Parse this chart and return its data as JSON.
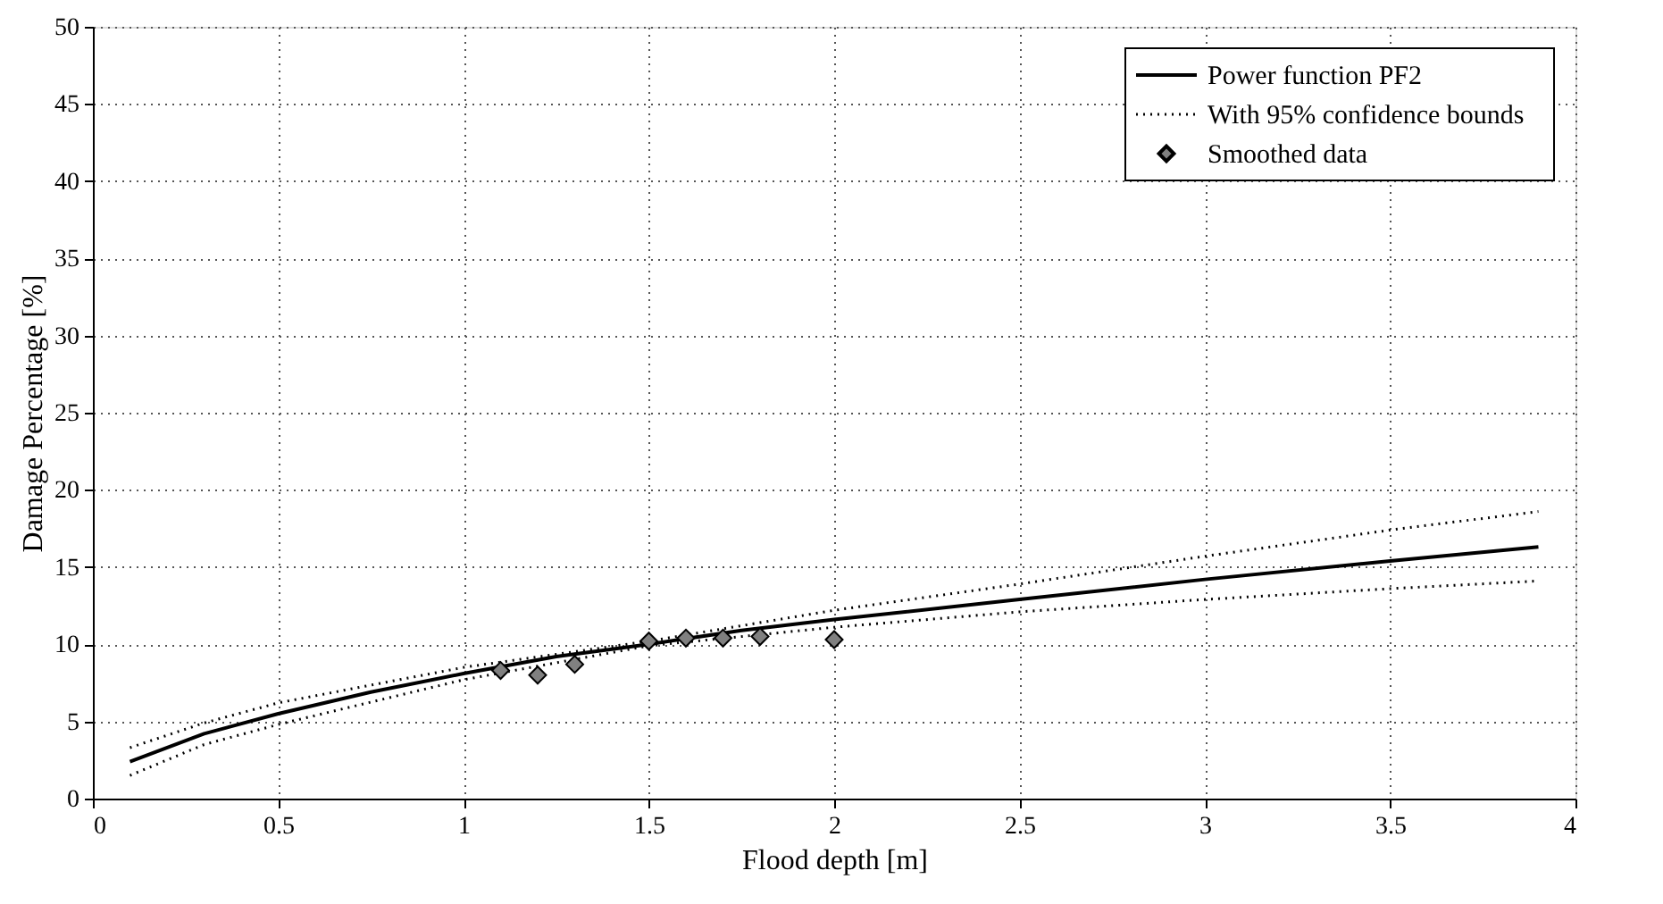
{
  "chart_data": {
    "type": "line",
    "xlabel": "Flood depth [m]",
    "ylabel": "Damage Percentage [%]",
    "xlim": [
      0,
      4
    ],
    "xticks": [
      0,
      0.5,
      1,
      1.5,
      2,
      2.5,
      3,
      3.5,
      4
    ],
    "ylim": [
      0,
      50
    ],
    "yticks": [
      0,
      5,
      10,
      15,
      20,
      25,
      30,
      35,
      40,
      45,
      50
    ],
    "grid": true,
    "legend": "top right",
    "series": [
      {
        "name": "Power function PF2",
        "line_style": "solid",
        "color": "#000000",
        "x": [
          0.1,
          0.3,
          0.5,
          0.75,
          1,
          1.25,
          1.5,
          1.75,
          2,
          2.5,
          3,
          3.5,
          3.9
        ],
        "values": [
          2.4,
          4.2,
          5.5,
          6.9,
          8.1,
          9.2,
          10.0,
          10.9,
          11.6,
          12.9,
          14.2,
          15.4,
          16.3
        ]
      },
      {
        "name": "With 95% confidence bounds",
        "line_style": "dotted",
        "color": "#000000",
        "x": [
          0.1,
          0.3,
          0.5,
          1,
          1.5,
          2,
          2.5,
          3,
          3.5,
          3.9
        ],
        "values": [
          3.3,
          4.9,
          6.2,
          8.5,
          10.2,
          12.2,
          13.9,
          15.7,
          17.4,
          18.6
        ]
      },
      {
        "line_style": "dotted",
        "color": "#000000",
        "x": [
          0.1,
          0.3,
          0.5,
          1,
          1.5,
          2,
          2.5,
          3,
          3.5,
          3.9
        ],
        "values": [
          1.5,
          3.5,
          4.8,
          7.7,
          9.9,
          11.1,
          12.1,
          12.9,
          13.6,
          14.1
        ]
      },
      {
        "name": "Smoothed data",
        "type": "scatter",
        "marker": "diamond",
        "color": "#808080",
        "x": [
          1.1,
          1.2,
          1.3,
          1.5,
          1.6,
          1.7,
          1.8,
          2.0
        ],
        "values": [
          8.3,
          8.0,
          8.7,
          10.2,
          10.4,
          10.4,
          10.5,
          10.3
        ]
      }
    ]
  }
}
